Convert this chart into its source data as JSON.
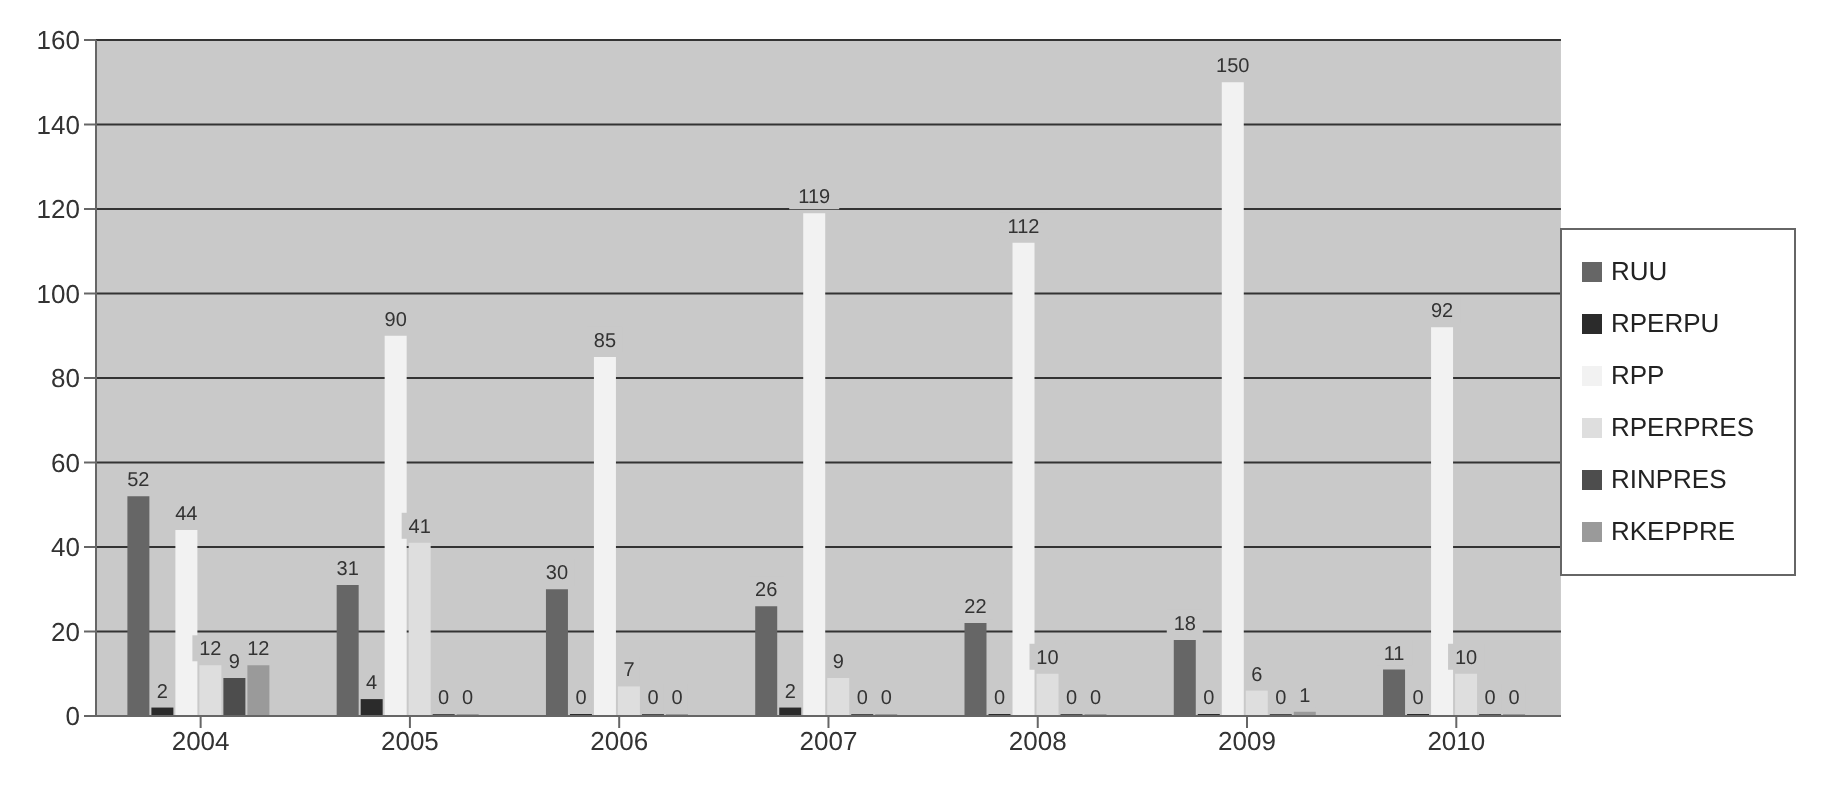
{
  "chart_data": {
    "type": "bar",
    "categories": [
      "2004",
      "2005",
      "2006",
      "2007",
      "2008",
      "2009",
      "2010"
    ],
    "series": [
      {
        "name": "RUU",
        "color": "#666666",
        "values": [
          52,
          31,
          30,
          26,
          22,
          18,
          11
        ]
      },
      {
        "name": "RPERPU",
        "color": "#2b2b2b",
        "values": [
          2,
          4,
          0,
          2,
          0,
          0,
          0
        ]
      },
      {
        "name": "RPP",
        "color": "#f2f2f2",
        "values": [
          44,
          90,
          85,
          119,
          112,
          150,
          92
        ]
      },
      {
        "name": "RPERPRES",
        "color": "#dedede",
        "values": [
          12,
          41,
          7,
          9,
          10,
          6,
          10
        ]
      },
      {
        "name": "RINPRES",
        "color": "#4d4d4d",
        "values": [
          9,
          0,
          0,
          0,
          0,
          0,
          0
        ]
      },
      {
        "name": "RKEPPRE",
        "color": "#9a9a9a",
        "values": [
          12,
          0,
          0,
          0,
          0,
          1,
          0
        ]
      }
    ],
    "ylim": [
      0,
      160
    ],
    "yticks": [
      0,
      20,
      40,
      60,
      80,
      100,
      120,
      140,
      160
    ],
    "grid": "y",
    "legend": "right",
    "data_labels": true
  }
}
